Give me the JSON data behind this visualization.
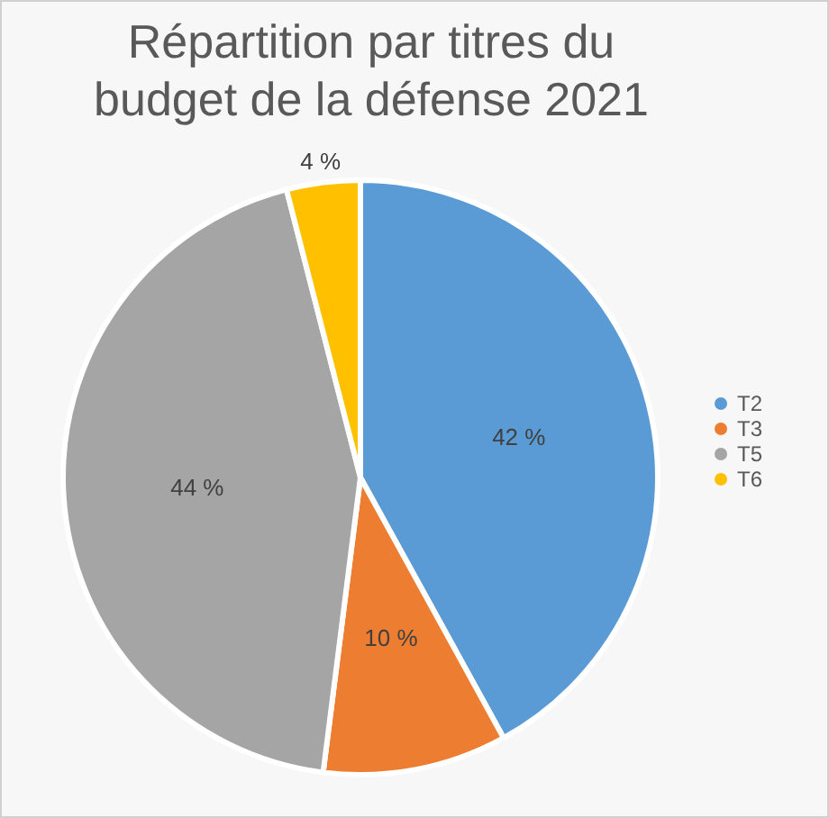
{
  "chart_data": {
    "type": "pie",
    "title": "Répartition par titres du budget de la défense 2021",
    "categories": [
      "T2",
      "T3",
      "T5",
      "T6"
    ],
    "values": [
      42,
      10,
      44,
      4
    ],
    "colors": [
      "#5b9bd5",
      "#ed7d31",
      "#a5a5a5",
      "#ffc000"
    ],
    "value_labels": [
      "42 %",
      "10 %",
      "44 %",
      "4 %"
    ],
    "legend": "right"
  }
}
